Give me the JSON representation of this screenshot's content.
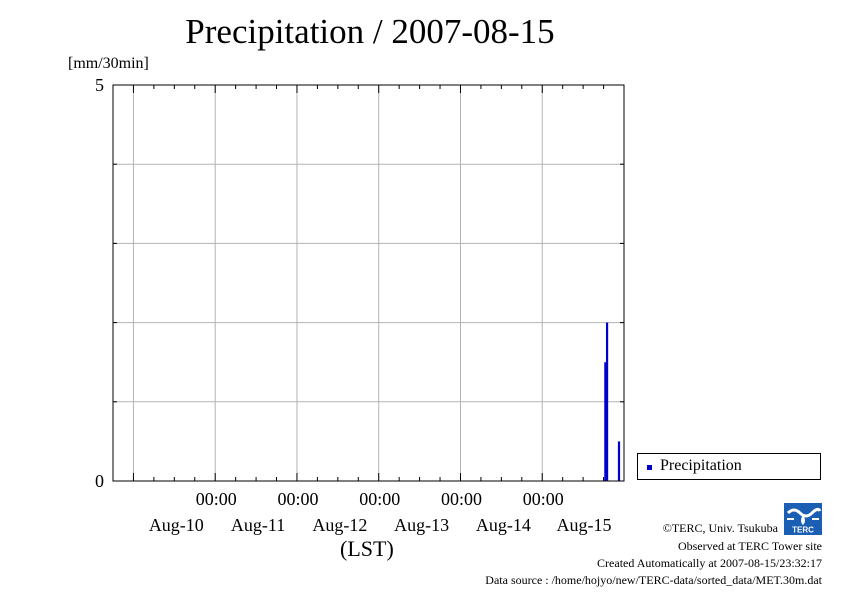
{
  "title": "Precipitation / 2007-08-15",
  "y_unit_label": "[mm/30min]",
  "x_axis_title": "(LST)",
  "legend": {
    "label": "Precipitation"
  },
  "colors": {
    "series": "#0000cc",
    "grid": "#b3b3b3",
    "axis": "#000000"
  },
  "footer": {
    "copyright": "©TERC, Univ. Tsukuba",
    "observed": "Observed at TERC Tower site",
    "created": "Created Automatically at 2007-08-15/23:32:17",
    "source": "Data source : /home/hojyo/new/TERC-data/sorted_data/MET.30m.dat"
  },
  "logo": {
    "text": "TERC"
  },
  "chart_data": {
    "type": "bar",
    "title": "Precipitation / 2007-08-15",
    "ylabel": "[mm/30min]",
    "xlabel": "(LST)",
    "ylim": [
      0,
      5
    ],
    "y_ticks": [
      0,
      5
    ],
    "x_time_ticks": [
      "00:00",
      "00:00",
      "00:00",
      "00:00",
      "00:00"
    ],
    "x_date_labels": [
      "Aug-10",
      "Aug-11",
      "Aug-12",
      "Aug-13",
      "Aug-14",
      "Aug-15"
    ],
    "x_range": [
      "2007-08-09 18:00",
      "2007-08-16 00:00"
    ],
    "grid": true,
    "legend_position": "bottom-right outside",
    "series": [
      {
        "name": "Precipitation",
        "x": [
          "2007-08-15 18:30",
          "2007-08-15 19:00",
          "2007-08-15 22:30"
        ],
        "values": [
          1.5,
          2.0,
          0.5
        ]
      }
    ]
  }
}
